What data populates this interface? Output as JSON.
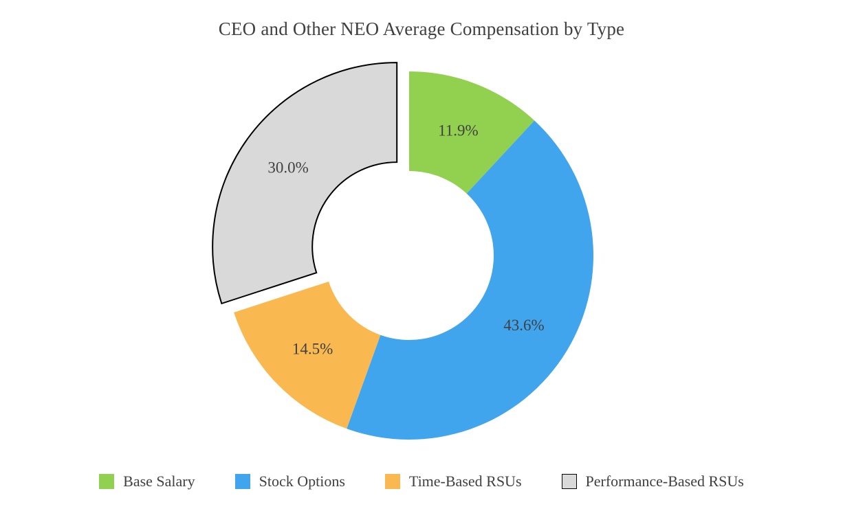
{
  "chart_data": {
    "type": "pie",
    "variant": "donut",
    "title": "CEO and Other NEO Average Compensation by Type",
    "categories": [
      "Base Salary",
      "Stock Options",
      "Time-Based RSUs",
      "Performance-Based RSUs"
    ],
    "values": [
      11.9,
      43.6,
      14.5,
      30.0
    ],
    "labels": [
      "11.9%",
      "43.6%",
      "14.5%",
      "30.0%"
    ],
    "colors": [
      "#92D050",
      "#41A5EE",
      "#F9B950",
      "#D9D9D9"
    ],
    "slice_borders": [
      null,
      null,
      null,
      "#000000"
    ],
    "exploded": [
      false,
      false,
      false,
      true
    ],
    "start_angle_deg": 0,
    "direction": "clockwise",
    "inner_radius_ratio": 0.46,
    "legend_position": "bottom",
    "label_color": "#404040",
    "background_color": "#FFFFFF"
  }
}
